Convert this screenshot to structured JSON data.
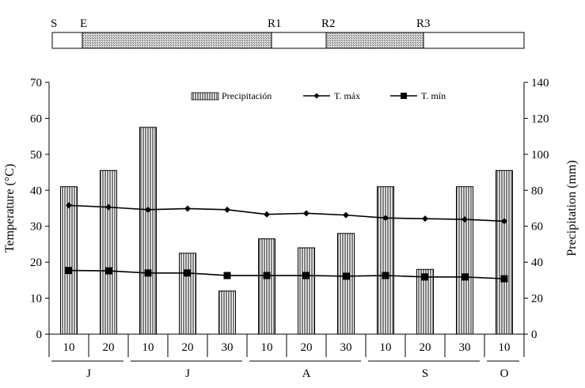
{
  "chart_data": {
    "type": "bar+line",
    "stages": [
      "S",
      "E",
      "R1",
      "R2",
      "R3"
    ],
    "categories": [
      "10",
      "20",
      "10",
      "20",
      "30",
      "10",
      "20",
      "30",
      "10",
      "20",
      "30",
      "10"
    ],
    "months": [
      {
        "label": "J",
        "count": 2
      },
      {
        "label": "J",
        "count": 3
      },
      {
        "label": "A",
        "count": 3
      },
      {
        "label": "S",
        "count": 3
      },
      {
        "label": "O",
        "count": 1
      }
    ],
    "series": [
      {
        "name": "Precipitación",
        "axis": "right",
        "kind": "bar",
        "values": [
          82,
          91,
          115,
          45,
          24,
          53,
          48,
          56,
          82,
          36,
          82,
          91
        ]
      },
      {
        "name": "T. máx",
        "axis": "left",
        "kind": "line",
        "marker": "diamond",
        "values": [
          35.8,
          35.3,
          34.6,
          34.9,
          34.6,
          33.3,
          33.6,
          33.1,
          32.3,
          32.1,
          31.9,
          31.4
        ]
      },
      {
        "name": "T. mín",
        "axis": "left",
        "kind": "line",
        "marker": "square",
        "values": [
          17.7,
          17.6,
          17.0,
          17.0,
          16.3,
          16.3,
          16.3,
          16.1,
          16.3,
          15.9,
          15.9,
          15.4
        ]
      }
    ],
    "ylabel": "Temperature (°C)",
    "y2label": "Precipitation (mm)",
    "ylim": [
      0,
      70
    ],
    "y2lim": [
      0,
      140
    ],
    "yticks": [
      "0",
      "10",
      "20",
      "30",
      "40",
      "50",
      "60",
      "70"
    ],
    "y2ticks": [
      "0",
      "20",
      "40",
      "60",
      "80",
      "100",
      "120",
      "140"
    ],
    "legend_position": "top",
    "grid": false
  }
}
